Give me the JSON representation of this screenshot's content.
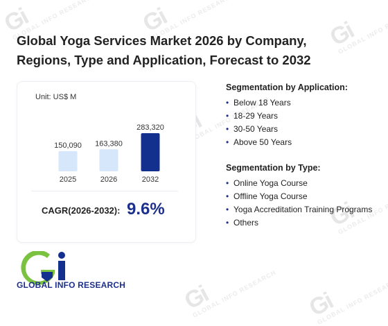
{
  "title": "Global Yoga Services Market 2026 by Company, Regions, Type and Application, Forecast to 2032",
  "unit_label": "Unit: US$ M",
  "chart_data": {
    "type": "bar",
    "categories": [
      "2025",
      "2026",
      "2032"
    ],
    "values": [
      150090,
      163380,
      283320
    ],
    "value_labels": [
      "150,090",
      "163,380",
      "283,320"
    ],
    "colors": [
      "#d6e6fb",
      "#d6e6fb",
      "#14308e"
    ]
  },
  "cagr": {
    "label": "CAGR(2026-2032):",
    "value": "9.6%"
  },
  "segmentation_application": {
    "heading": "Segmentation by Application:",
    "items": [
      "Below 18 Years",
      "18-29 Years",
      "30-50 Years",
      "Above 50 Years"
    ]
  },
  "segmentation_type": {
    "heading": "Segmentation by Type:",
    "items": [
      "Online Yoga Course",
      "Offline Yoga Course",
      "Yoga Accreditation Training Programs",
      "Others"
    ]
  },
  "logo": {
    "mark": "Gi",
    "text": "GLOBAL INFO RESEARCH"
  },
  "watermark": {
    "mark": "Gi",
    "text": "GLOBAL INFO RESEARCH"
  },
  "colors": {
    "accent": "#1c2f8a",
    "bar_light": "#d6e6fb",
    "logo_green": "#7cc241"
  }
}
